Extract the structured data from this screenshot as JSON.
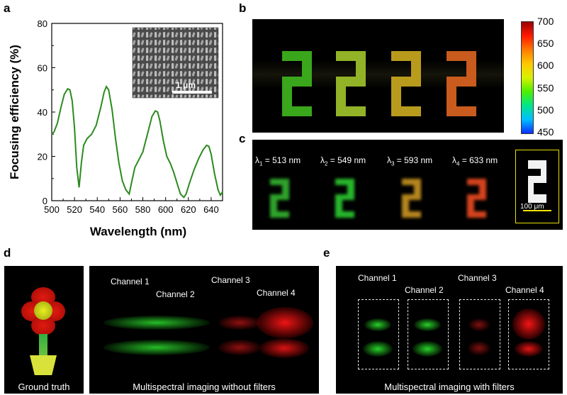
{
  "panels": {
    "a": "a",
    "b": "b",
    "c": "c",
    "d": "d",
    "e": "e"
  },
  "colors": {
    "curve": "#2b8a1e",
    "inset_bar": "#ffffff",
    "scale_yellow": "#f2e400"
  },
  "chart_data": {
    "type": "line",
    "xlabel": "Wavelength (nm)",
    "ylabel": "Focusing efficiency (%)",
    "xlim": [
      500,
      650
    ],
    "ylim": [
      0,
      80
    ],
    "xticks": [
      "500",
      "520",
      "540",
      "560",
      "580",
      "600",
      "620",
      "640"
    ],
    "yticks": [
      "0",
      "20",
      "40",
      "60",
      "80"
    ],
    "grid": false,
    "inset_scale_label": "1 μm",
    "x": [
      500,
      502,
      505,
      508,
      511,
      514,
      516,
      518,
      520,
      522,
      524,
      526,
      528,
      531,
      535,
      539,
      543,
      546,
      548,
      550,
      553,
      556,
      559,
      562,
      565,
      568,
      570,
      573,
      576,
      580,
      584,
      588,
      591,
      593,
      595,
      598,
      601,
      604,
      607,
      610,
      613,
      616,
      618,
      621,
      625,
      629,
      633,
      636,
      638,
      640,
      643,
      646,
      648,
      650
    ],
    "y": [
      30,
      31,
      35,
      42,
      48,
      50.5,
      50,
      45,
      33,
      15,
      6,
      17,
      25,
      28,
      30,
      34,
      42,
      49,
      51.5,
      50,
      41,
      28,
      17,
      9,
      5,
      3,
      8,
      15,
      18,
      22,
      30,
      38,
      40.5,
      40,
      36,
      27,
      20,
      17,
      13,
      8,
      3,
      1.5,
      3,
      8,
      14,
      19,
      23,
      25,
      24.5,
      21,
      12,
      5,
      2.5,
      4
    ]
  },
  "colorbar": {
    "ticks": [
      "700",
      "650",
      "600",
      "550",
      "500",
      "450"
    ],
    "stops": [
      "#0a2fff",
      "#00bfff",
      "#00e68a",
      "#4cf000",
      "#d8f000",
      "#ffc800",
      "#ff7a00",
      "#ff1a00",
      "#9a0000"
    ]
  },
  "panel_b": {
    "digit_colors": [
      "#3fb41e",
      "#9ec12a",
      "#c8a81e",
      "#d9631f"
    ]
  },
  "panel_c": {
    "labels": [
      {
        "lambda": "λ",
        "sub": "1",
        "text": " = 513 nm"
      },
      {
        "lambda": "λ",
        "sub": "2",
        "text": " = 549 nm"
      },
      {
        "lambda": "λ",
        "sub": "3",
        "text": " = 593 nm"
      },
      {
        "lambda": "λ",
        "sub": "4",
        "text": " = 633 nm"
      }
    ],
    "blur_colors": [
      "#2fa32a",
      "#27b52a",
      "#b5851c",
      "#d4421c"
    ],
    "scale_label": "100 μm"
  },
  "panel_d": {
    "ground_truth_caption": "Ground truth",
    "main_caption": "Multispectral imaging without filters",
    "channels": [
      "Channel 1",
      "Channel 2",
      "Channel 3",
      "Channel 4"
    ]
  },
  "panel_e": {
    "caption": "Multispectral imaging with filters",
    "channels": [
      "Channel 1",
      "Channel 2",
      "Channel 3",
      "Channel 4"
    ]
  }
}
